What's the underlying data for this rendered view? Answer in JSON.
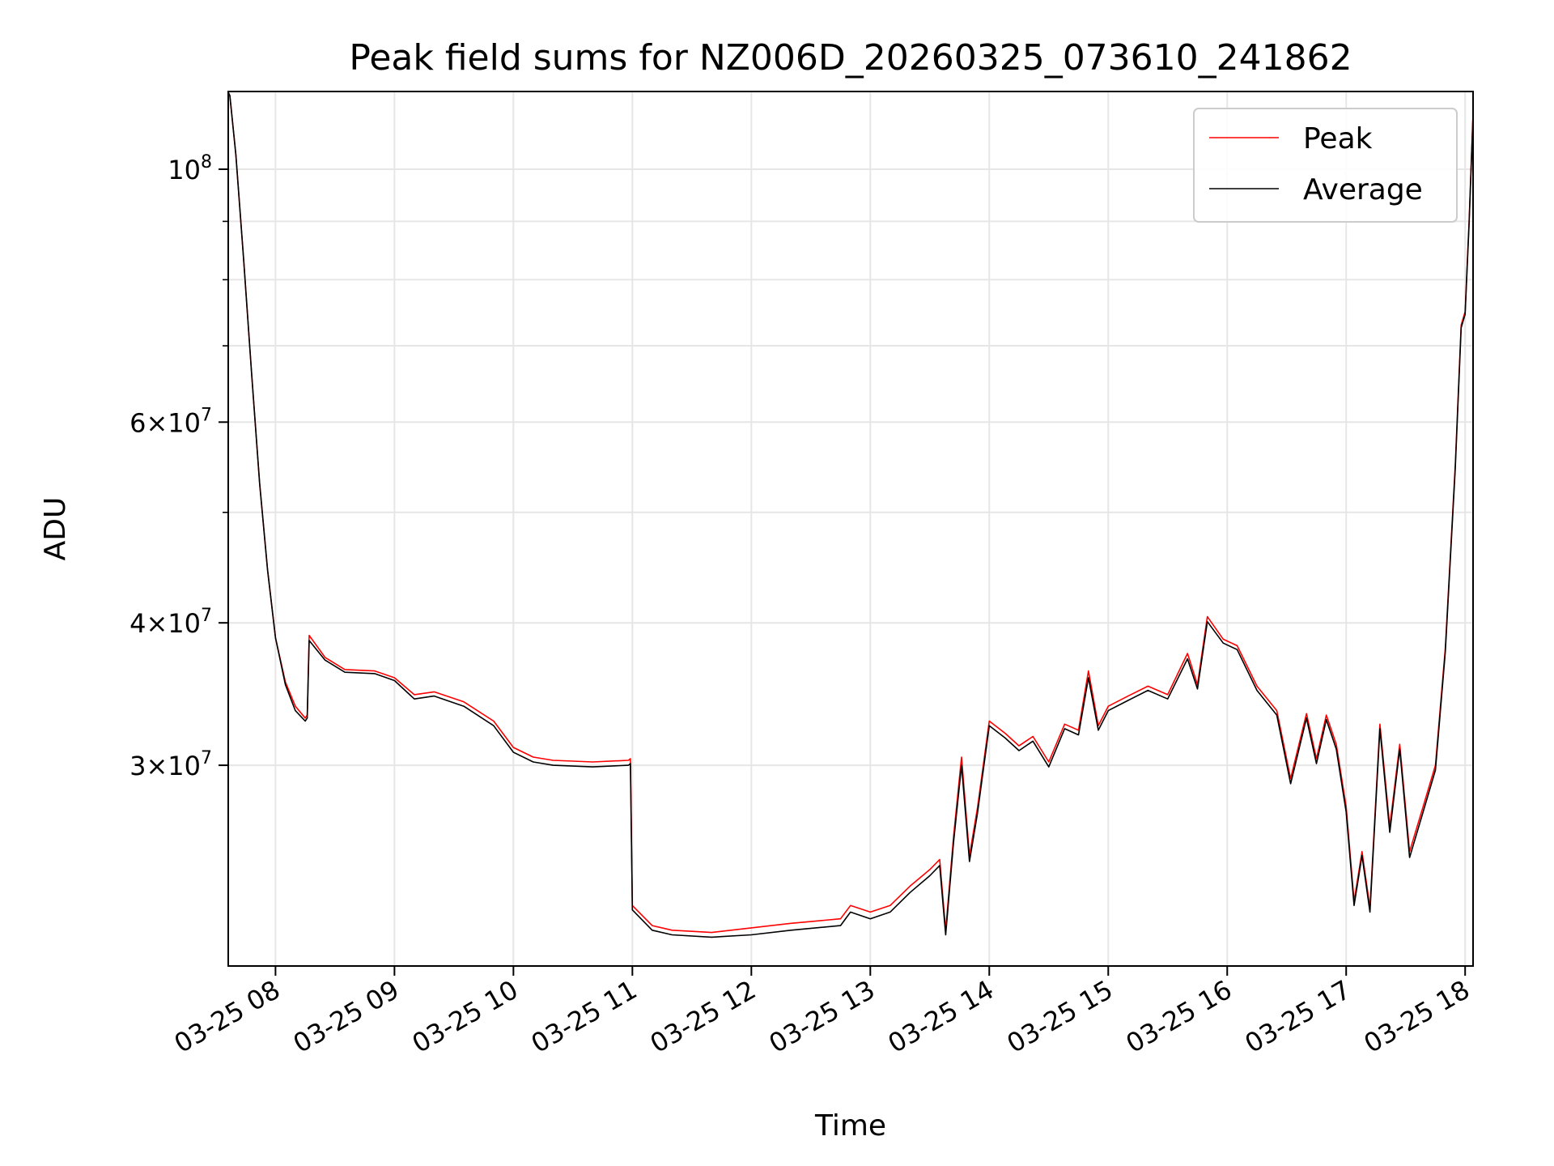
{
  "chart_data": {
    "type": "line",
    "title": "Peak field sums for NZ006D_20260325_073610_241862",
    "xlabel": "Time",
    "ylabel": "ADU",
    "y_scale": "log",
    "ylim": [
      20000000,
      117000000
    ],
    "xlim": [
      "2026-03-25T07:36:10",
      "2026-03-25T18:04:00"
    ],
    "grid": true,
    "legend_position": "upper right",
    "x_tick_labels": [
      "03-25 08",
      "03-25 09",
      "03-25 10",
      "03-25 11",
      "03-25 12",
      "03-25 13",
      "03-25 14",
      "03-25 15",
      "03-25 16",
      "03-25 17",
      "03-25 18"
    ],
    "x_ticks": [
      "2026-03-25T08:00",
      "2026-03-25T09:00",
      "2026-03-25T10:00",
      "2026-03-25T11:00",
      "2026-03-25T12:00",
      "2026-03-25T13:00",
      "2026-03-25T14:00",
      "2026-03-25T15:00",
      "2026-03-25T16:00",
      "2026-03-25T17:00",
      "2026-03-25T18:00"
    ],
    "y_ticks": [
      {
        "value": 30000000,
        "mant": "3",
        "exp": "7"
      },
      {
        "value": 40000000,
        "mant": "4",
        "exp": "7"
      },
      {
        "value": 60000000,
        "mant": "6",
        "exp": "7"
      },
      {
        "value": 100000000,
        "mant": "",
        "exp": "8"
      }
    ],
    "y_minor_ticks": [
      50000000,
      70000000,
      80000000,
      90000000
    ],
    "series": [
      {
        "name": "Peak",
        "color": "#ff0000",
        "x": [
          "2026-03-25T07:36",
          "2026-03-25T07:37",
          "2026-03-25T07:40",
          "2026-03-25T07:44",
          "2026-03-25T07:48",
          "2026-03-25T07:52",
          "2026-03-25T07:56",
          "2026-03-25T08:00",
          "2026-03-25T08:05",
          "2026-03-25T08:10",
          "2026-03-25T08:15",
          "2026-03-25T08:16",
          "2026-03-25T08:17",
          "2026-03-25T08:25",
          "2026-03-25T08:35",
          "2026-03-25T08:50",
          "2026-03-25T09:00",
          "2026-03-25T09:10",
          "2026-03-25T09:20",
          "2026-03-25T09:35",
          "2026-03-25T09:50",
          "2026-03-25T10:00",
          "2026-03-25T10:10",
          "2026-03-25T10:20",
          "2026-03-25T10:40",
          "2026-03-25T10:58",
          "2026-03-25T10:59",
          "2026-03-25T11:00",
          "2026-03-25T11:10",
          "2026-03-25T11:20",
          "2026-03-25T11:40",
          "2026-03-25T12:00",
          "2026-03-25T12:20",
          "2026-03-25T12:45",
          "2026-03-25T12:50",
          "2026-03-25T13:00",
          "2026-03-25T13:10",
          "2026-03-25T13:20",
          "2026-03-25T13:30",
          "2026-03-25T13:35",
          "2026-03-25T13:38",
          "2026-03-25T13:42",
          "2026-03-25T13:46",
          "2026-03-25T13:50",
          "2026-03-25T13:54",
          "2026-03-25T14:00",
          "2026-03-25T14:08",
          "2026-03-25T14:15",
          "2026-03-25T14:22",
          "2026-03-25T14:30",
          "2026-03-25T14:38",
          "2026-03-25T14:45",
          "2026-03-25T14:50",
          "2026-03-25T14:55",
          "2026-03-25T15:00",
          "2026-03-25T15:10",
          "2026-03-25T15:20",
          "2026-03-25T15:30",
          "2026-03-25T15:40",
          "2026-03-25T15:45",
          "2026-03-25T15:50",
          "2026-03-25T15:58",
          "2026-03-25T16:05",
          "2026-03-25T16:15",
          "2026-03-25T16:25",
          "2026-03-25T16:32",
          "2026-03-25T16:40",
          "2026-03-25T16:45",
          "2026-03-25T16:50",
          "2026-03-25T16:55",
          "2026-03-25T17:00",
          "2026-03-25T17:04",
          "2026-03-25T17:08",
          "2026-03-25T17:12",
          "2026-03-25T17:17",
          "2026-03-25T17:22",
          "2026-03-25T17:27",
          "2026-03-25T17:32",
          "2026-03-25T17:38",
          "2026-03-25T17:45",
          "2026-03-25T17:50",
          "2026-03-25T17:55",
          "2026-03-25T17:58",
          "2026-03-25T18:00",
          "2026-03-25T18:02",
          "2026-03-25T18:04"
        ],
        "y": [
          117000000,
          116000000,
          103000000,
          83000000,
          66000000,
          53000000,
          44500000,
          38800000,
          35500000,
          33800000,
          33000000,
          33200000,
          39000000,
          37300000,
          36400000,
          36300000,
          35800000,
          34600000,
          34800000,
          34100000,
          32800000,
          31100000,
          30500000,
          30300000,
          30200000,
          30300000,
          30400000,
          22600000,
          21700000,
          21500000,
          21400000,
          21600000,
          21800000,
          22000000,
          22600000,
          22300000,
          22600000,
          23500000,
          24300000,
          24800000,
          21500000,
          26000000,
          30500000,
          25000000,
          27500000,
          32800000,
          32000000,
          31200000,
          31800000,
          30200000,
          32600000,
          32200000,
          36300000,
          32500000,
          33800000,
          34500000,
          35200000,
          34600000,
          37600000,
          35300000,
          40500000,
          38700000,
          38200000,
          35200000,
          33500000,
          29200000,
          33300000,
          30400000,
          33200000,
          31300000,
          27600000,
          22800000,
          25200000,
          22500000,
          32600000,
          26500000,
          31300000,
          25200000,
          27300000,
          30000000,
          38000000,
          55000000,
          73000000,
          75000000,
          90000000,
          112000000
        ]
      },
      {
        "name": "Average",
        "color": "#000000",
        "x": [
          "2026-03-25T07:36",
          "2026-03-25T07:37",
          "2026-03-25T07:40",
          "2026-03-25T07:44",
          "2026-03-25T07:48",
          "2026-03-25T07:52",
          "2026-03-25T07:56",
          "2026-03-25T08:00",
          "2026-03-25T08:05",
          "2026-03-25T08:10",
          "2026-03-25T08:15",
          "2026-03-25T08:16",
          "2026-03-25T08:17",
          "2026-03-25T08:25",
          "2026-03-25T08:35",
          "2026-03-25T08:50",
          "2026-03-25T09:00",
          "2026-03-25T09:10",
          "2026-03-25T09:20",
          "2026-03-25T09:35",
          "2026-03-25T09:50",
          "2026-03-25T10:00",
          "2026-03-25T10:10",
          "2026-03-25T10:20",
          "2026-03-25T10:40",
          "2026-03-25T10:58",
          "2026-03-25T10:59",
          "2026-03-25T11:00",
          "2026-03-25T11:10",
          "2026-03-25T11:20",
          "2026-03-25T11:40",
          "2026-03-25T12:00",
          "2026-03-25T12:20",
          "2026-03-25T12:45",
          "2026-03-25T12:50",
          "2026-03-25T13:00",
          "2026-03-25T13:10",
          "2026-03-25T13:20",
          "2026-03-25T13:30",
          "2026-03-25T13:35",
          "2026-03-25T13:38",
          "2026-03-25T13:42",
          "2026-03-25T13:46",
          "2026-03-25T13:50",
          "2026-03-25T13:54",
          "2026-03-25T14:00",
          "2026-03-25T14:08",
          "2026-03-25T14:15",
          "2026-03-25T14:22",
          "2026-03-25T14:30",
          "2026-03-25T14:38",
          "2026-03-25T14:45",
          "2026-03-25T14:50",
          "2026-03-25T14:55",
          "2026-03-25T15:00",
          "2026-03-25T15:10",
          "2026-03-25T15:20",
          "2026-03-25T15:30",
          "2026-03-25T15:40",
          "2026-03-25T15:45",
          "2026-03-25T15:50",
          "2026-03-25T15:58",
          "2026-03-25T16:05",
          "2026-03-25T16:15",
          "2026-03-25T16:25",
          "2026-03-25T16:32",
          "2026-03-25T16:40",
          "2026-03-25T16:45",
          "2026-03-25T16:50",
          "2026-03-25T16:55",
          "2026-03-25T17:00",
          "2026-03-25T17:04",
          "2026-03-25T17:08",
          "2026-03-25T17:12",
          "2026-03-25T17:17",
          "2026-03-25T17:22",
          "2026-03-25T17:27",
          "2026-03-25T17:32",
          "2026-03-25T17:38",
          "2026-03-25T17:45",
          "2026-03-25T17:50",
          "2026-03-25T17:55",
          "2026-03-25T17:58",
          "2026-03-25T18:00",
          "2026-03-25T18:02",
          "2026-03-25T18:04"
        ],
        "y": [
          117000000,
          116000000,
          103000000,
          83000000,
          66000000,
          53000000,
          44500000,
          38800000,
          35300000,
          33500000,
          32800000,
          33000000,
          38600000,
          37100000,
          36200000,
          36100000,
          35600000,
          34300000,
          34500000,
          33800000,
          32500000,
          30800000,
          30200000,
          30000000,
          29900000,
          30000000,
          30100000,
          22400000,
          21500000,
          21300000,
          21200000,
          21300000,
          21500000,
          21700000,
          22300000,
          22000000,
          22300000,
          23200000,
          24000000,
          24500000,
          21300000,
          25700000,
          30000000,
          24700000,
          27200000,
          32500000,
          31700000,
          30900000,
          31500000,
          29900000,
          32300000,
          31900000,
          35800000,
          32200000,
          33500000,
          34200000,
          34900000,
          34300000,
          37200000,
          35000000,
          40100000,
          38400000,
          37900000,
          34900000,
          33200000,
          28900000,
          33000000,
          30100000,
          32900000,
          31000000,
          27300000,
          22600000,
          25000000,
          22300000,
          32300000,
          26200000,
          31000000,
          24900000,
          27000000,
          29700000,
          37700000,
          54600000,
          72600000,
          74600000,
          89600000,
          111500000
        ]
      }
    ]
  }
}
